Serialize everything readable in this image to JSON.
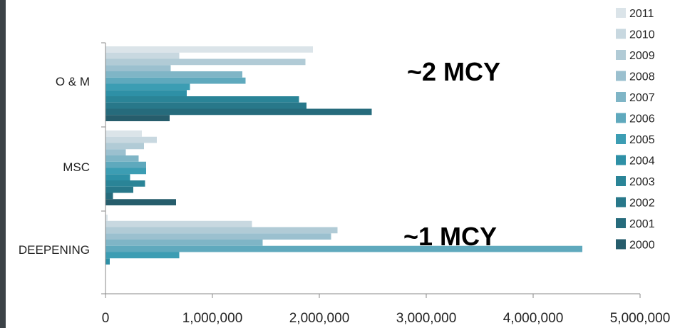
{
  "chart_data": {
    "type": "bar",
    "orientation": "horizontal",
    "categories": [
      "O & M",
      "MSC",
      "DEEPENING"
    ],
    "x_ticks": [
      "0",
      "1,000,000",
      "2,000,000",
      "3,000,000",
      "4,000,000",
      "5,000,000"
    ],
    "xlim": [
      0,
      5000000
    ],
    "grid": false,
    "legend_placement": "right",
    "series": [
      {
        "name": "2011",
        "color": "#dbe4e9",
        "values": [
          1940000,
          340000,
          20000
        ]
      },
      {
        "name": "2010",
        "color": "#c8d8e0",
        "values": [
          690000,
          480000,
          1370000
        ]
      },
      {
        "name": "2009",
        "color": "#b1cbd6",
        "values": [
          1870000,
          360000,
          2170000
        ]
      },
      {
        "name": "2008",
        "color": "#9bc0cf",
        "values": [
          610000,
          190000,
          2110000
        ]
      },
      {
        "name": "2007",
        "color": "#7fb5c6",
        "values": [
          1280000,
          310000,
          1470000
        ]
      },
      {
        "name": "2006",
        "color": "#5fa9bd",
        "values": [
          1310000,
          380000,
          4460000
        ]
      },
      {
        "name": "2005",
        "color": "#3c9db3",
        "values": [
          790000,
          380000,
          690000
        ]
      },
      {
        "name": "2004",
        "color": "#2e90a6",
        "values": [
          760000,
          230000,
          40000
        ]
      },
      {
        "name": "2003",
        "color": "#2a8497",
        "values": [
          1810000,
          370000,
          0
        ]
      },
      {
        "name": "2002",
        "color": "#28788a",
        "values": [
          1880000,
          260000,
          0
        ]
      },
      {
        "name": "2001",
        "color": "#266b7c",
        "values": [
          2490000,
          70000,
          0
        ]
      },
      {
        "name": "2000",
        "color": "#265d6c",
        "values": [
          600000,
          660000,
          0
        ]
      }
    ],
    "annotations": [
      "~2 MCY",
      "~1 MCY"
    ]
  }
}
